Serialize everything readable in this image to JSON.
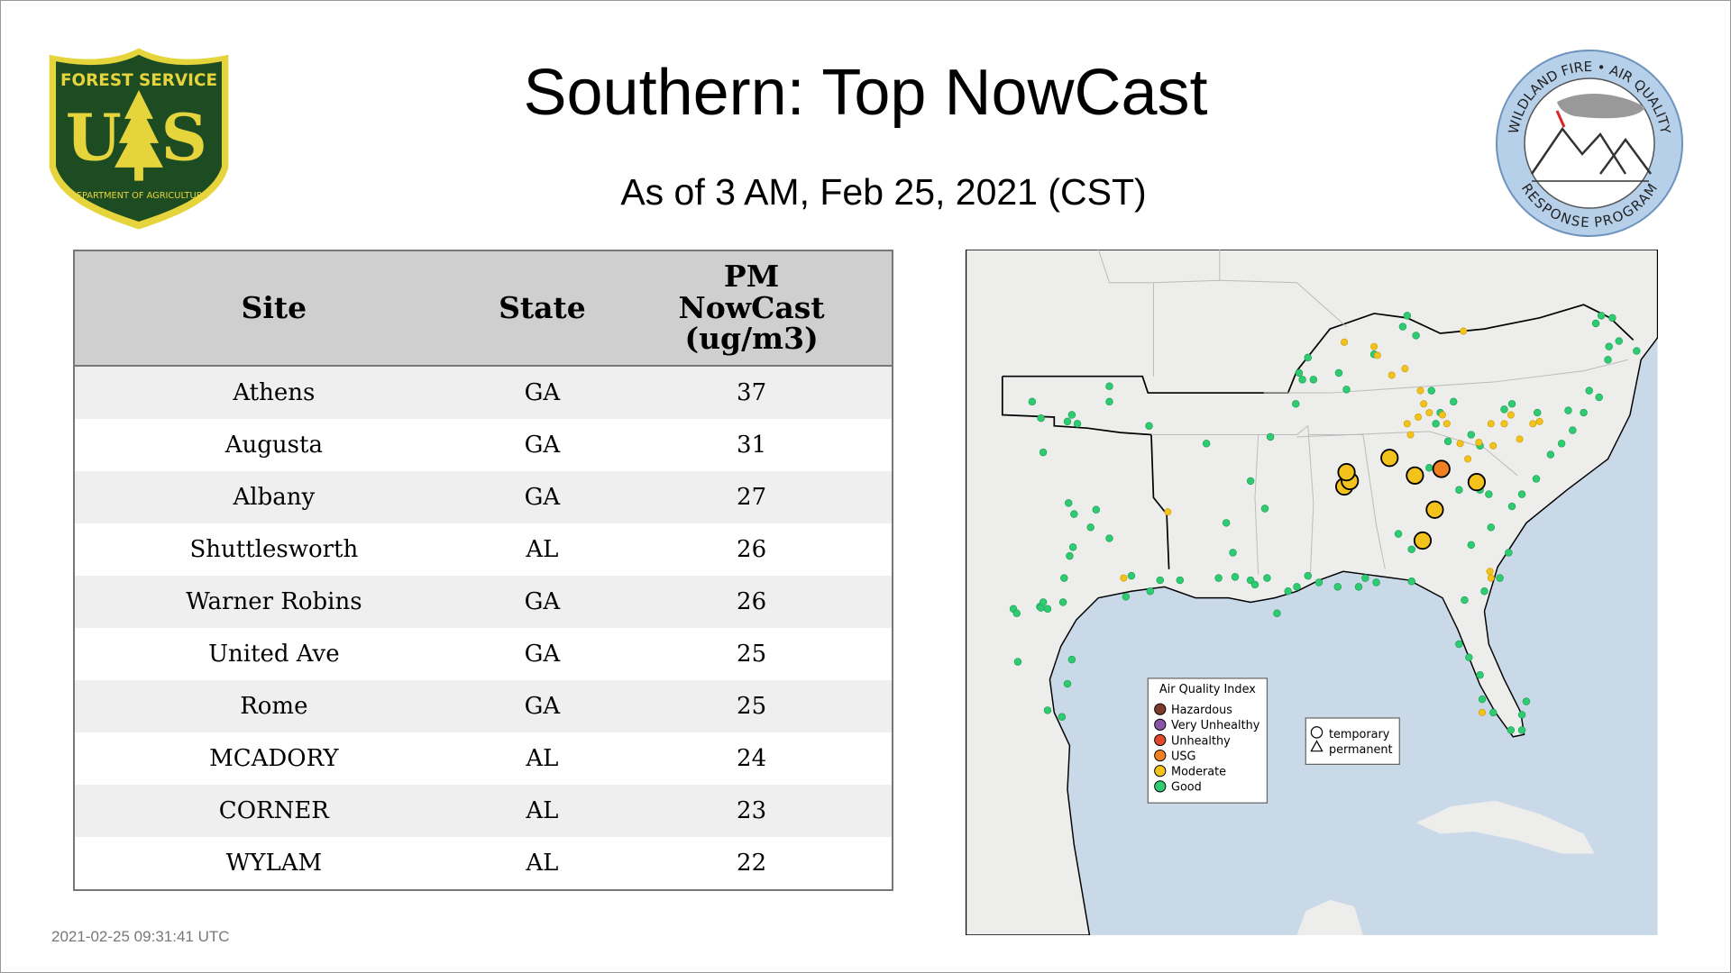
{
  "header": {
    "title": "Southern: Top NowCast",
    "subtitle": "As of  3 AM, Feb 25, 2021 (CST)"
  },
  "logos": {
    "forest_service": {
      "top": "FOREST SERVICE",
      "letter_left": "U",
      "letter_right": "S",
      "bottom": "DEPARTMENT OF AGRICULTURE"
    },
    "air_program": {
      "top": "WILDLAND FIRE • AIR QUALITY",
      "bottom": "RESPONSE PROGRAM"
    }
  },
  "table": {
    "columns": [
      "Site",
      "State",
      "PM NowCast (ug/m3)"
    ],
    "rows": [
      [
        "Athens",
        "GA",
        37
      ],
      [
        "Augusta",
        "GA",
        31
      ],
      [
        "Albany",
        "GA",
        27
      ],
      [
        "Shuttlesworth",
        "AL",
        26
      ],
      [
        "Warner Robins",
        "GA",
        26
      ],
      [
        "United Ave",
        "GA",
        25
      ],
      [
        "Rome",
        "GA",
        25
      ],
      [
        "MCADORY",
        "AL",
        24
      ],
      [
        "CORNER",
        "AL",
        23
      ],
      [
        "WYLAM",
        "AL",
        22
      ]
    ]
  },
  "map": {
    "aqi_legend": {
      "title": "Air Quality Index",
      "items": [
        "Hazardous",
        "Very Unhealthy",
        "Unhealthy",
        "USG",
        "Moderate",
        "Good"
      ]
    },
    "type_legend": [
      "temporary",
      "permanent"
    ]
  },
  "timestamp": "2021-02-25 09:31:41 UTC"
}
